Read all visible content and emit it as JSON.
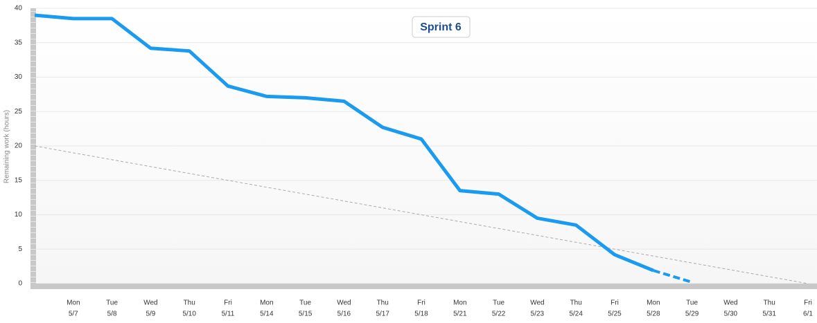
{
  "chart_data": {
    "type": "line",
    "title": "Sprint 6",
    "ylabel": "Remaining work (hours)",
    "categories": [
      null,
      "Mon",
      "Tue",
      "Wed",
      "Thu",
      "Fri",
      "Mon",
      "Tue",
      "Wed",
      "Thu",
      "Fri",
      "Mon",
      "Tue",
      "Wed",
      "Thu",
      "Fri",
      "Mon",
      "Tue",
      "Wed",
      "Thu",
      "Fri"
    ],
    "dates": [
      null,
      "5/7",
      "5/8",
      "5/9",
      "5/10",
      "5/11",
      "5/14",
      "5/15",
      "5/16",
      "5/17",
      "5/18",
      "5/21",
      "5/22",
      "5/23",
      "5/24",
      "5/25",
      "5/28",
      "5/29",
      "5/30",
      "5/31",
      "6/1"
    ],
    "series": [
      {
        "color": "#aaaaaa",
        "width": 1,
        "dash": true,
        "values": [
          20,
          19,
          18,
          17,
          16,
          15,
          14,
          13,
          12,
          11,
          10,
          9,
          8,
          7,
          6,
          5,
          4,
          3,
          2,
          1,
          0
        ]
      },
      {
        "color": "#1a9bf0",
        "width": 5,
        "dash": false,
        "values": [
          39,
          38.5,
          38.5,
          34.2,
          33.8,
          28.7,
          27.2,
          27.0,
          26.5,
          22.7,
          21.0,
          13.5,
          13.0,
          9.5,
          8.5,
          4.2,
          1.9,
          null,
          null,
          null,
          null
        ]
      },
      {
        "color": "#1a9bf0",
        "width": 4,
        "dash": true,
        "values": [
          null,
          null,
          null,
          null,
          null,
          null,
          null,
          null,
          null,
          null,
          null,
          null,
          null,
          null,
          null,
          null,
          1.9,
          0.2,
          null,
          null,
          null
        ]
      }
    ],
    "ylim": [
      0,
      40
    ],
    "yticks": [
      0,
      5,
      10,
      15,
      20,
      25,
      30,
      35,
      40
    ],
    "grid": true
  }
}
